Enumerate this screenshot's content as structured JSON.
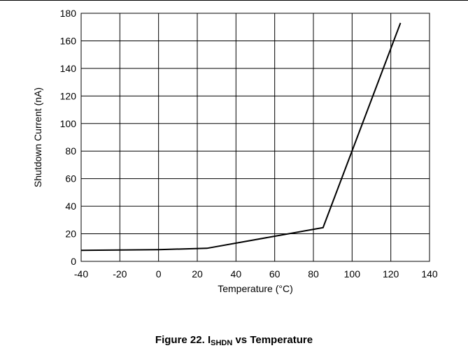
{
  "caption": {
    "prefix": "Figure 22. I",
    "subscript": "SHDN",
    "suffix": " vs Temperature"
  },
  "chart_data": {
    "type": "line",
    "title": "",
    "xlabel": "Temperature (°C)",
    "ylabel": "Shutdown Current (nA)",
    "xlim": [
      -40,
      140
    ],
    "ylim": [
      0,
      180
    ],
    "x_ticks": [
      -40,
      -20,
      0,
      20,
      40,
      60,
      80,
      100,
      120,
      140
    ],
    "y_ticks": [
      0,
      20,
      40,
      60,
      80,
      100,
      120,
      140,
      160,
      180
    ],
    "grid": true,
    "legend": "none",
    "line_color": "#000000",
    "series": [
      {
        "x": [
          -40,
          0,
          25,
          85,
          125
        ],
        "y": [
          8,
          8.5,
          9.5,
          24.5,
          173
        ]
      }
    ]
  }
}
